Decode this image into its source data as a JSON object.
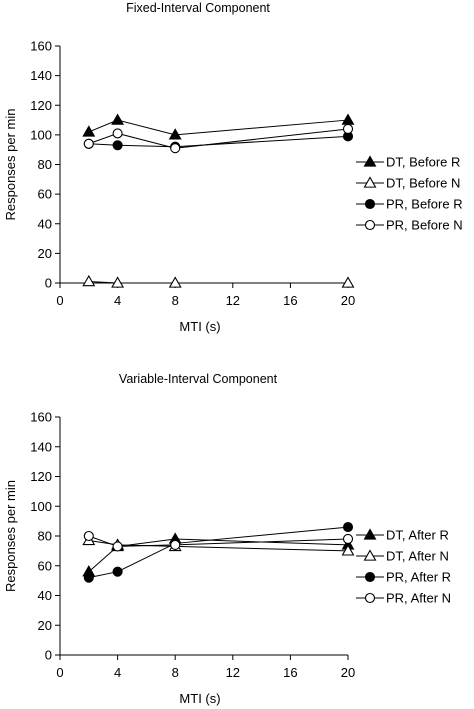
{
  "chart_data": [
    {
      "type": "line",
      "title": "Fixed-Interval Component",
      "xlabel": "MTI (s)",
      "ylabel": "Responses per min",
      "xlim": [
        0,
        20
      ],
      "ylim": [
        0,
        160
      ],
      "xticks": [
        0,
        4,
        8,
        12,
        16,
        20
      ],
      "yticks": [
        0,
        20,
        40,
        60,
        80,
        100,
        120,
        140,
        160
      ],
      "grid": false,
      "legend": "right",
      "series": [
        {
          "name": "DT, Before R",
          "marker": "filled-triangle",
          "x": [
            2,
            4,
            8,
            20
          ],
          "y": [
            102,
            110,
            100,
            110
          ]
        },
        {
          "name": "DT, Before N",
          "marker": "open-triangle",
          "x": [
            2,
            4,
            8,
            20
          ],
          "y": [
            1,
            0,
            0,
            0
          ]
        },
        {
          "name": "PR, Before R",
          "marker": "filled-circle",
          "x": [
            2,
            4,
            8,
            20
          ],
          "y": [
            94,
            93,
            92,
            99
          ]
        },
        {
          "name": "PR, Before N",
          "marker": "open-circle",
          "x": [
            2,
            4,
            8,
            20
          ],
          "y": [
            94,
            101,
            91,
            104
          ]
        }
      ]
    },
    {
      "type": "line",
      "title": "Variable-Interval Component",
      "xlabel": "MTI (s)",
      "ylabel": "Responses per min",
      "xlim": [
        0,
        20
      ],
      "ylim": [
        0,
        160
      ],
      "xticks": [
        0,
        4,
        8,
        12,
        16,
        20
      ],
      "yticks": [
        0,
        20,
        40,
        60,
        80,
        100,
        120,
        140,
        160
      ],
      "grid": false,
      "legend": "right",
      "series": [
        {
          "name": "DT, After R",
          "marker": "filled-triangle",
          "x": [
            2,
            4,
            8,
            20
          ],
          "y": [
            56,
            73,
            78,
            74
          ]
        },
        {
          "name": "DT, After N",
          "marker": "open-triangle",
          "x": [
            2,
            4,
            8,
            20
          ],
          "y": [
            77,
            74,
            73,
            70
          ]
        },
        {
          "name": "PR, After R",
          "marker": "filled-circle",
          "x": [
            2,
            4,
            8,
            20
          ],
          "y": [
            52,
            56,
            75,
            86
          ]
        },
        {
          "name": "PR, After N",
          "marker": "open-circle",
          "x": [
            2,
            4,
            8,
            20
          ],
          "y": [
            80,
            73,
            74,
            78
          ]
        }
      ]
    }
  ]
}
